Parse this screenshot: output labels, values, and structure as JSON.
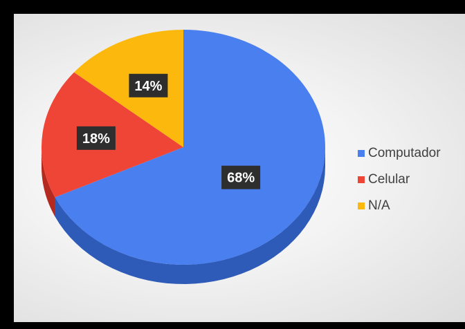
{
  "chart_data": {
    "type": "pie",
    "title": "",
    "categories": [
      "Computador",
      "Celular",
      "N/A"
    ],
    "values": [
      68,
      18,
      14
    ],
    "data_labels": [
      "68%",
      "18%",
      "14%"
    ],
    "colors": [
      "#4a7ff0",
      "#ee4536",
      "#fcb80c"
    ],
    "side_colors": [
      "#2f5bb8",
      "#b52a1e",
      "#c88a00"
    ],
    "label_background": "#2e2e2e",
    "start_angle_deg": 0,
    "direction": "clockwise",
    "style": "3d-tilted",
    "legend_position": "right"
  }
}
